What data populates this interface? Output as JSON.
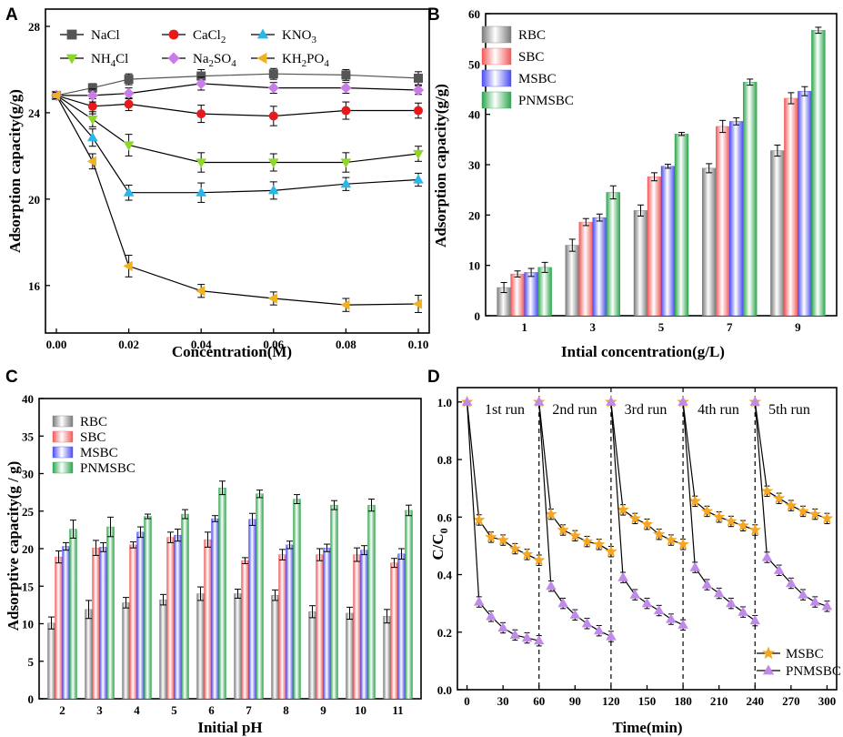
{
  "chart_data": [
    {
      "panel": "A",
      "type": "line",
      "xlabel": "Concentration(M)",
      "ylabel": "Adsorption capacity(g/g)",
      "x": [
        0.0,
        0.01,
        0.02,
        0.04,
        0.06,
        0.08,
        0.1
      ],
      "xticks": [
        "0.00",
        "0.02",
        "0.04",
        "0.06",
        "0.08",
        "0.10"
      ],
      "yticks": [
        "16",
        "20",
        "24",
        "28"
      ],
      "xlim": [
        0,
        0.1
      ],
      "ylim": [
        13.8,
        28.8
      ],
      "series": [
        {
          "name": "NaCl",
          "label_main": "NaCl",
          "label_sub": "",
          "label_tail": "",
          "marker": "square",
          "color": "#555555",
          "values": [
            24.8,
            25.15,
            25.55,
            25.7,
            25.8,
            25.75,
            25.6
          ],
          "err": [
            0.15,
            0.2,
            0.25,
            0.3,
            0.25,
            0.25,
            0.3
          ]
        },
        {
          "name": "CaCl2",
          "label_main": "CaCl",
          "label_sub": "2",
          "label_tail": "",
          "marker": "circle",
          "color": "#e8191b",
          "values": [
            24.8,
            24.3,
            24.4,
            23.95,
            23.85,
            24.1,
            24.1
          ],
          "err": [
            0.15,
            0.35,
            0.3,
            0.4,
            0.45,
            0.4,
            0.35
          ]
        },
        {
          "name": "KNO3",
          "label_main": "KNO",
          "label_sub": "3",
          "label_tail": "",
          "marker": "triangle-up",
          "color": "#29b6e8",
          "values": [
            24.8,
            22.85,
            20.3,
            20.3,
            20.4,
            20.7,
            20.9
          ],
          "err": [
            0.15,
            0.4,
            0.35,
            0.45,
            0.4,
            0.3,
            0.3
          ]
        },
        {
          "name": "NH4Cl",
          "label_main": "NH",
          "label_sub": "4",
          "label_tail": "Cl",
          "marker": "triangle-down",
          "color": "#8fd629",
          "values": [
            24.8,
            23.7,
            22.5,
            21.7,
            21.7,
            21.7,
            22.1
          ],
          "err": [
            0.15,
            0.35,
            0.5,
            0.45,
            0.4,
            0.45,
            0.35
          ]
        },
        {
          "name": "Na2SO4",
          "label_main": "Na",
          "label_sub": "2",
          "label_tail": "SO",
          "label_sub2": "4",
          "marker": "diamond",
          "color": "#c87de8",
          "values": [
            24.8,
            24.8,
            24.9,
            25.35,
            25.15,
            25.15,
            25.05
          ],
          "err": [
            0.15,
            0.3,
            0.25,
            0.3,
            0.25,
            0.25,
            0.2
          ]
        },
        {
          "name": "KH2PO4",
          "label_main": "KH",
          "label_sub": "2",
          "label_tail": "PO",
          "label_sub2": "4",
          "marker": "left-triangle",
          "color": "#f0b21e",
          "values": [
            24.8,
            21.75,
            16.9,
            15.75,
            15.4,
            15.1,
            15.15
          ],
          "err": [
            0.15,
            0.35,
            0.5,
            0.3,
            0.3,
            0.3,
            0.4
          ]
        }
      ]
    },
    {
      "panel": "B",
      "type": "bar",
      "xlabel": "Intial concentration(g/L)",
      "ylabel": "Adsorption capacity(g/g)",
      "categories": [
        "1",
        "3",
        "5",
        "7",
        "9"
      ],
      "yticks": [
        "0",
        "10",
        "20",
        "30",
        "40",
        "50",
        "60"
      ],
      "ylim": [
        0,
        60
      ],
      "series": [
        {
          "name": "RBC",
          "color": "#7a7a7a",
          "values": [
            5.6,
            14.0,
            20.9,
            29.3,
            32.8
          ],
          "err": [
            1.0,
            1.2,
            1.1,
            0.9,
            1.1
          ]
        },
        {
          "name": "SBC",
          "color": "#f25959",
          "values": [
            8.3,
            18.6,
            27.6,
            37.6,
            43.2
          ],
          "err": [
            0.6,
            0.7,
            0.8,
            1.2,
            1.1
          ]
        },
        {
          "name": "MSBC",
          "color": "#4d4df2",
          "values": [
            8.6,
            19.5,
            29.7,
            38.6,
            44.6
          ],
          "err": [
            0.8,
            0.7,
            0.4,
            0.7,
            0.9
          ]
        },
        {
          "name": "PNMSBC",
          "color": "#2da64d",
          "values": [
            9.6,
            24.5,
            36.1,
            46.4,
            56.7
          ],
          "err": [
            1.0,
            1.3,
            0.3,
            0.6,
            0.6
          ]
        }
      ]
    },
    {
      "panel": "C",
      "type": "bar",
      "xlabel": "Initial pH",
      "ylabel": "Adsorptive capacity(g / g)",
      "categories": [
        "2",
        "3",
        "4",
        "5",
        "6",
        "7",
        "8",
        "9",
        "10",
        "11"
      ],
      "yticks": [
        "0",
        "5",
        "10",
        "15",
        "20",
        "25",
        "30",
        "35",
        "40"
      ],
      "ylim": [
        0,
        40
      ],
      "series": [
        {
          "name": "RBC",
          "color": "#7a7a7a",
          "values": [
            10.1,
            11.9,
            12.8,
            13.2,
            14.0,
            14.0,
            13.8,
            11.6,
            11.4,
            11.0
          ],
          "err": [
            0.8,
            1.2,
            0.7,
            0.7,
            0.9,
            0.6,
            0.7,
            0.8,
            0.8,
            0.9
          ]
        },
        {
          "name": "SBC",
          "color": "#f25959",
          "values": [
            18.9,
            20.1,
            20.5,
            21.5,
            21.2,
            18.4,
            19.2,
            19.2,
            19.2,
            18.1
          ],
          "err": [
            0.8,
            1.0,
            0.4,
            0.7,
            1.0,
            0.4,
            0.7,
            0.8,
            0.9,
            0.6
          ]
        },
        {
          "name": "MSBC",
          "color": "#4d4df2",
          "values": [
            20.3,
            20.2,
            22.2,
            21.8,
            24.0,
            23.9,
            20.5,
            20.1,
            19.8,
            19.3
          ],
          "err": [
            0.5,
            0.6,
            0.7,
            0.8,
            0.4,
            0.8,
            0.5,
            0.5,
            0.6,
            0.7
          ]
        },
        {
          "name": "PNMSBC",
          "color": "#2da64d",
          "values": [
            22.6,
            22.9,
            24.3,
            24.6,
            28.1,
            27.3,
            26.6,
            25.8,
            25.8,
            25.1
          ],
          "err": [
            1.2,
            1.3,
            0.3,
            0.6,
            0.9,
            0.5,
            0.6,
            0.6,
            0.8,
            0.7
          ]
        }
      ]
    },
    {
      "panel": "D",
      "type": "line",
      "xlabel": "Time(min)",
      "ylabel_main": "C/C",
      "ylabel_sub": "0",
      "xlim": [
        -8,
        308
      ],
      "ylim": [
        0,
        1.05
      ],
      "xticks": [
        "0",
        "30",
        "60",
        "90",
        "120",
        "150",
        "180",
        "210",
        "240",
        "270",
        "300"
      ],
      "yticks": [
        "0.0",
        "0.2",
        "0.4",
        "0.6",
        "0.8",
        "1.0"
      ],
      "run_dividers": [
        60,
        120,
        180,
        240
      ],
      "runs": [
        "1st run",
        "2nd run",
        "3rd run",
        "4th run",
        "5th run"
      ],
      "series": [
        {
          "name": "MSBC",
          "marker": "star",
          "color": "#f5a623",
          "segments": [
            [
              [
                0,
                1.0
              ],
              [
                10,
                0.59
              ],
              [
                20,
                0.53
              ],
              [
                30,
                0.52
              ],
              [
                40,
                0.49
              ],
              [
                50,
                0.47
              ],
              [
                60,
                0.45
              ]
            ],
            [
              [
                60,
                1.0
              ],
              [
                70,
                0.61
              ],
              [
                80,
                0.555
              ],
              [
                90,
                0.535
              ],
              [
                100,
                0.515
              ],
              [
                110,
                0.505
              ],
              [
                120,
                0.48
              ]
            ],
            [
              [
                120,
                1.0
              ],
              [
                130,
                0.625
              ],
              [
                140,
                0.595
              ],
              [
                150,
                0.575
              ],
              [
                160,
                0.54
              ],
              [
                170,
                0.52
              ],
              [
                180,
                0.505
              ]
            ],
            [
              [
                180,
                1.0
              ],
              [
                190,
                0.655
              ],
              [
                200,
                0.62
              ],
              [
                210,
                0.6
              ],
              [
                220,
                0.585
              ],
              [
                230,
                0.57
              ],
              [
                240,
                0.555
              ]
            ],
            [
              [
                240,
                1.0
              ],
              [
                250,
                0.69
              ],
              [
                260,
                0.665
              ],
              [
                270,
                0.64
              ],
              [
                280,
                0.62
              ],
              [
                290,
                0.61
              ],
              [
                300,
                0.595
              ]
            ]
          ]
        },
        {
          "name": "PNMSBC",
          "marker": "triangle",
          "color": "#c08ae8",
          "segments": [
            [
              [
                0,
                1.0
              ],
              [
                10,
                0.305
              ],
              [
                20,
                0.255
              ],
              [
                30,
                0.215
              ],
              [
                40,
                0.19
              ],
              [
                50,
                0.18
              ],
              [
                60,
                0.17
              ]
            ],
            [
              [
                60,
                1.0
              ],
              [
                70,
                0.36
              ],
              [
                80,
                0.3
              ],
              [
                90,
                0.26
              ],
              [
                100,
                0.23
              ],
              [
                110,
                0.205
              ],
              [
                120,
                0.185
              ]
            ],
            [
              [
                120,
                1.0
              ],
              [
                130,
                0.39
              ],
              [
                140,
                0.33
              ],
              [
                150,
                0.3
              ],
              [
                160,
                0.275
              ],
              [
                170,
                0.245
              ],
              [
                180,
                0.225
              ]
            ],
            [
              [
                180,
                1.0
              ],
              [
                190,
                0.425
              ],
              [
                200,
                0.365
              ],
              [
                210,
                0.335
              ],
              [
                220,
                0.3
              ],
              [
                230,
                0.27
              ],
              [
                240,
                0.24
              ]
            ],
            [
              [
                240,
                1.0
              ],
              [
                250,
                0.46
              ],
              [
                260,
                0.415
              ],
              [
                270,
                0.37
              ],
              [
                280,
                0.33
              ],
              [
                290,
                0.305
              ],
              [
                300,
                0.29
              ]
            ]
          ]
        }
      ]
    }
  ],
  "panel_labels": [
    "A",
    "B",
    "C",
    "D"
  ]
}
